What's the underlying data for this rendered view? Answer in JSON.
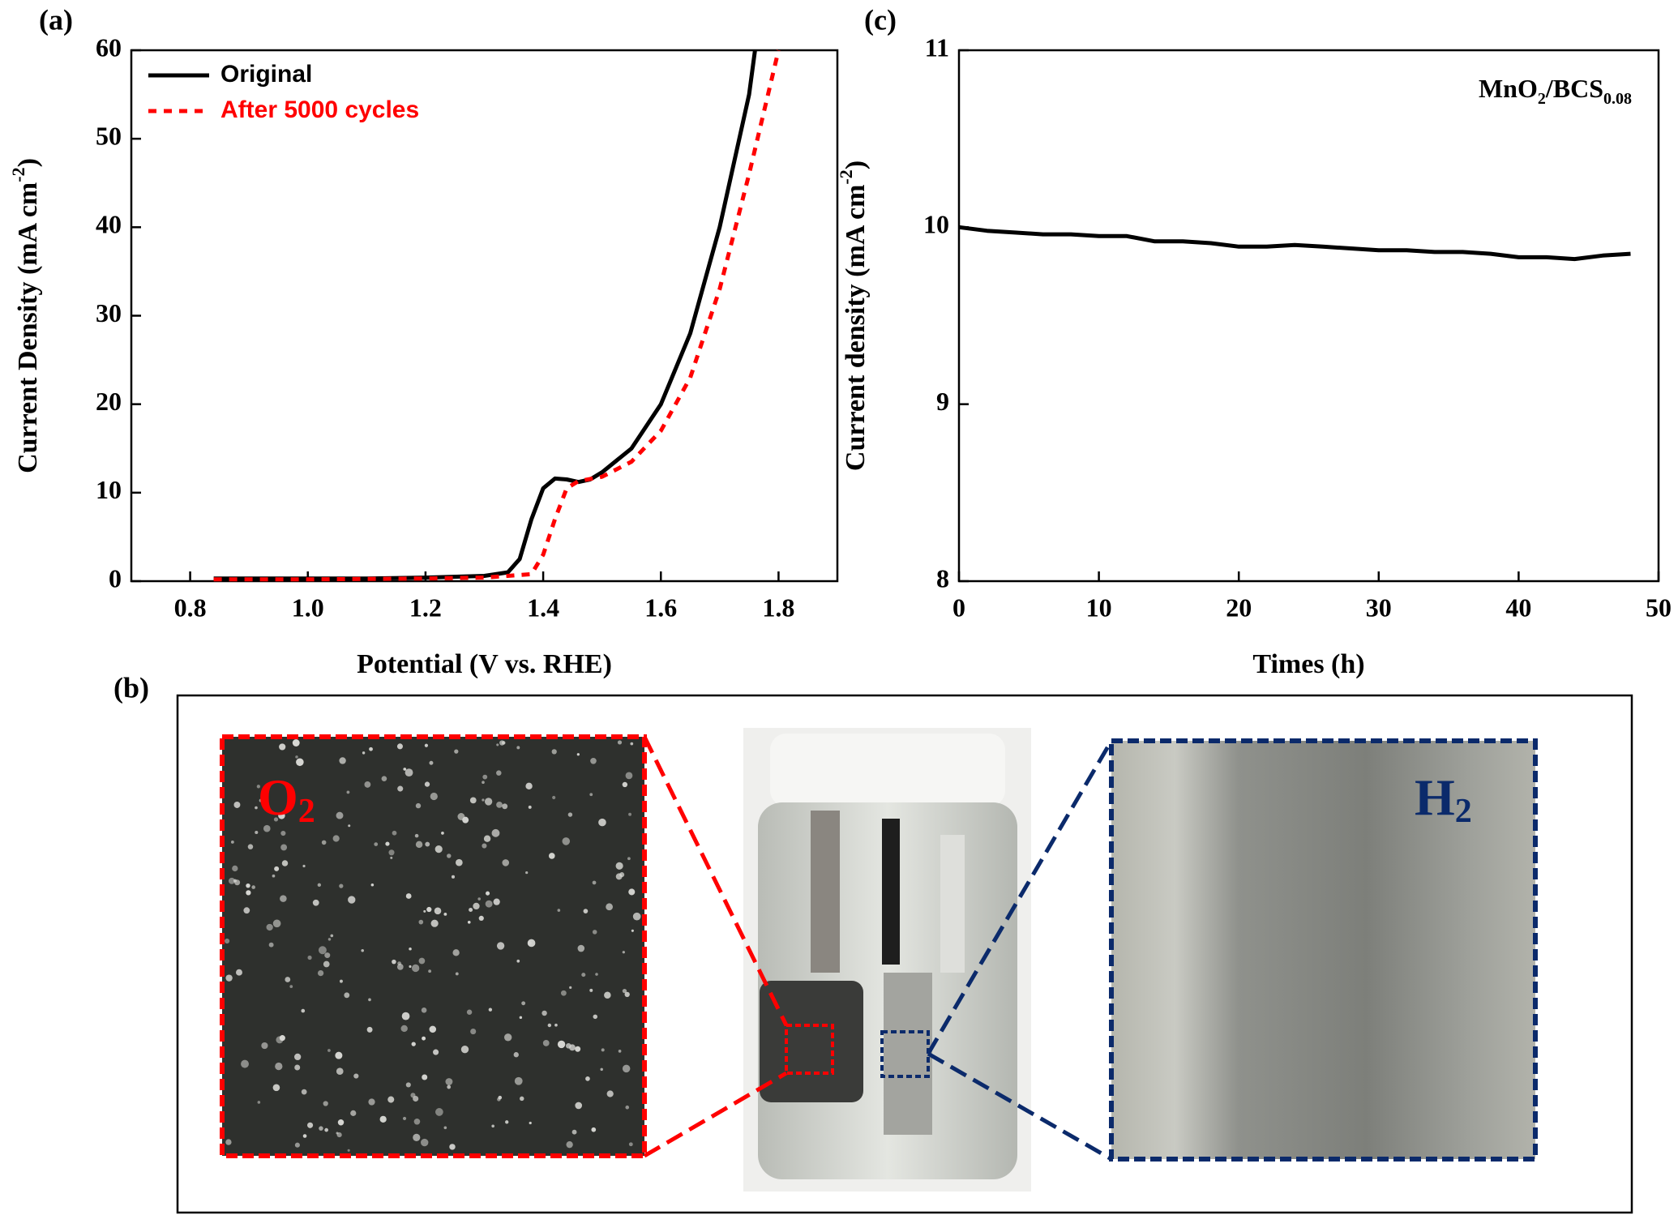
{
  "chart_data": [
    {
      "type": "line",
      "panel_label": "(a)",
      "xlabel": "Potential (V vs. RHE)",
      "ylabel": [
        "Current Density (mA cm",
        "-2",
        ")"
      ],
      "xlim": [
        0.7,
        1.9
      ],
      "ylim": [
        0,
        60
      ],
      "xticks": [
        0.8,
        {
          "value": 1,
          "label": "1.0"
        },
        1.2,
        1.4,
        1.6,
        1.8
      ],
      "yticks": [
        0,
        10,
        20,
        30,
        40,
        50,
        60
      ],
      "legend": "upper left",
      "series": [
        {
          "name": "Original",
          "color": "#000000",
          "dash": false,
          "x": [
            0.84,
            0.9,
            1.0,
            1.1,
            1.2,
            1.3,
            1.34,
            1.36,
            1.38,
            1.4,
            1.42,
            1.44,
            1.46,
            1.48,
            1.5,
            1.55,
            1.6,
            1.65,
            1.7,
            1.75,
            1.76
          ],
          "values": [
            0.3,
            0.3,
            0.3,
            0.3,
            0.4,
            0.6,
            1.0,
            2.5,
            7,
            10.5,
            11.6,
            11.5,
            11.2,
            11.5,
            12.3,
            15,
            20,
            28,
            40,
            55,
            60
          ]
        },
        {
          "name": "After 5000 cycles",
          "color": "#ff0000",
          "dash": true,
          "x": [
            0.84,
            1.0,
            1.2,
            1.3,
            1.38,
            1.4,
            1.42,
            1.44,
            1.46,
            1.5,
            1.55,
            1.6,
            1.65,
            1.7,
            1.75,
            1.8
          ],
          "values": [
            0.2,
            0.2,
            0.3,
            0.4,
            0.8,
            3,
            7,
            10.5,
            11.3,
            11.8,
            13.5,
            17,
            23,
            33,
            46,
            60
          ]
        }
      ]
    },
    {
      "type": "line",
      "panel_label": "(c)",
      "xlabel": "Times (h)",
      "ylabel": [
        "Current density (mA cm",
        "-2",
        ")"
      ],
      "annotation": [
        "MnO",
        "2",
        "/BCS",
        "0.08"
      ],
      "xlim": [
        0,
        50
      ],
      "ylim": [
        8,
        11
      ],
      "xticks": [
        0,
        10,
        20,
        30,
        40,
        50
      ],
      "yticks": [
        8,
        9,
        10,
        11
      ],
      "series": [
        {
          "color": "#000000",
          "dash": false,
          "x": [
            0,
            2,
            4,
            6,
            8,
            10,
            12,
            14,
            16,
            18,
            20,
            22,
            24,
            26,
            28,
            30,
            32,
            34,
            36,
            38,
            40,
            42,
            44,
            46,
            48
          ],
          "values": [
            10.0,
            9.98,
            9.97,
            9.96,
            9.96,
            9.95,
            9.95,
            9.92,
            9.92,
            9.91,
            9.89,
            9.89,
            9.9,
            9.89,
            9.88,
            9.87,
            9.87,
            9.86,
            9.86,
            9.85,
            9.83,
            9.83,
            9.82,
            9.84,
            9.85
          ]
        }
      ]
    }
  ],
  "photo_panel": {
    "panel_label": "(b)",
    "left_label": [
      "O",
      "2"
    ],
    "right_label": [
      "H",
      "2"
    ]
  }
}
